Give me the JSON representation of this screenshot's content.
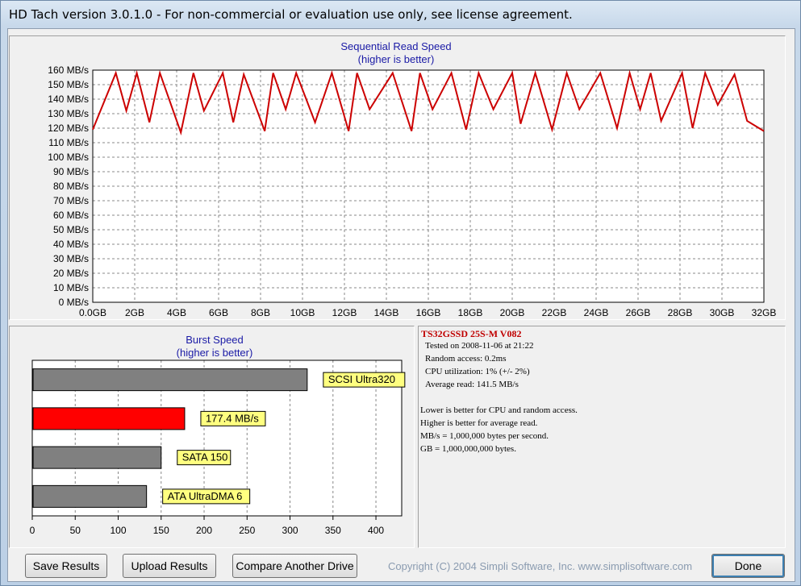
{
  "window": {
    "title": "HD Tach version 3.0.1.0  - For non-commercial or evaluation use only, see license agreement."
  },
  "sequential": {
    "title": "Sequential Read Speed",
    "subtitle": "(higher is better)"
  },
  "burst": {
    "title": "Burst Speed",
    "subtitle": "(higher is better)"
  },
  "info": {
    "drive": "TS32GSSD 25S-M V082",
    "lines": [
      "Tested on 2008-11-06 at 21:22",
      "Random access: 0.2ms",
      "CPU utilization: 1% (+/- 2%)",
      "Average read: 141.5 MB/s",
      "",
      "Lower is better for CPU and random access.",
      "Higher is better for average read.",
      "MB/s = 1,000,000 bytes per second.",
      "GB = 1,000,000,000 bytes."
    ]
  },
  "buttons": {
    "save": "Save Results",
    "upload": "Upload Results",
    "compare": "Compare Another Drive",
    "done": "Done"
  },
  "copyright": "Copyright (C) 2004 Simpli Software, Inc. www.simplisoftware.com",
  "colors": {
    "line": "#cc0000",
    "grid": "#888888",
    "bar_gray": "#808080",
    "bar_red": "#ff0000",
    "label_bg": "#ffff80"
  },
  "chart_data": [
    {
      "type": "line",
      "title": "Sequential Read Speed",
      "subtitle": "(higher is better)",
      "xlabel": "",
      "ylabel": "",
      "x_ticks": [
        "0.0GB",
        "2GB",
        "4GB",
        "6GB",
        "8GB",
        "10GB",
        "12GB",
        "14GB",
        "16GB",
        "18GB",
        "20GB",
        "22GB",
        "24GB",
        "26GB",
        "28GB",
        "30GB",
        "32GB"
      ],
      "y_ticks": [
        "0 MB/s",
        "10 MB/s",
        "20 MB/s",
        "30 MB/s",
        "40 MB/s",
        "50 MB/s",
        "60 MB/s",
        "70 MB/s",
        "80 MB/s",
        "90 MB/s",
        "100 MB/s",
        "110 MB/s",
        "120 MB/s",
        "130 MB/s",
        "140 MB/s",
        "150 MB/s",
        "160 MB/s"
      ],
      "xlim": [
        0,
        32
      ],
      "ylim": [
        0,
        160
      ],
      "grid": true,
      "series": [
        {
          "x": [
            0,
            1.1,
            1.6,
            2.1,
            2.7,
            3.2,
            4.2,
            4.8,
            5.3,
            6.2,
            6.7,
            7.2,
            8.2,
            8.6,
            9.2,
            9.7,
            10.6,
            11.4,
            12.2,
            12.6,
            13.2,
            14.3,
            15.2,
            15.6,
            16.2,
            17.1,
            17.8,
            18.4,
            19.1,
            20.0,
            20.4,
            21.1,
            21.9,
            22.6,
            23.2,
            24.2,
            25.0,
            25.6,
            26.1,
            26.6,
            27.1,
            28.1,
            28.6,
            29.2,
            29.8,
            30.6,
            31.2,
            32
          ],
          "y": [
            119,
            158,
            132,
            158,
            124,
            158,
            117,
            158,
            132,
            158,
            124,
            157,
            118,
            158,
            133,
            158,
            124,
            158,
            118,
            158,
            133,
            158,
            118,
            158,
            133,
            158,
            119,
            158,
            133,
            158,
            123,
            158,
            119,
            158,
            133,
            158,
            120,
            158,
            133,
            158,
            125,
            158,
            120,
            158,
            136,
            157,
            125,
            118
          ]
        }
      ]
    },
    {
      "type": "bar",
      "orientation": "horizontal",
      "title": "Burst Speed",
      "subtitle": "(higher is better)",
      "x_ticks": [
        "0",
        "50",
        "100",
        "150",
        "200",
        "250",
        "300",
        "350",
        "400"
      ],
      "xlim": [
        0,
        430
      ],
      "grid": true,
      "categories": [
        "SCSI Ultra320",
        "177.4 MB/s",
        "SATA 150",
        "ATA UltraDMA 6"
      ],
      "values": [
        320,
        177.4,
        150,
        133
      ],
      "highlight_index": 1
    }
  ]
}
